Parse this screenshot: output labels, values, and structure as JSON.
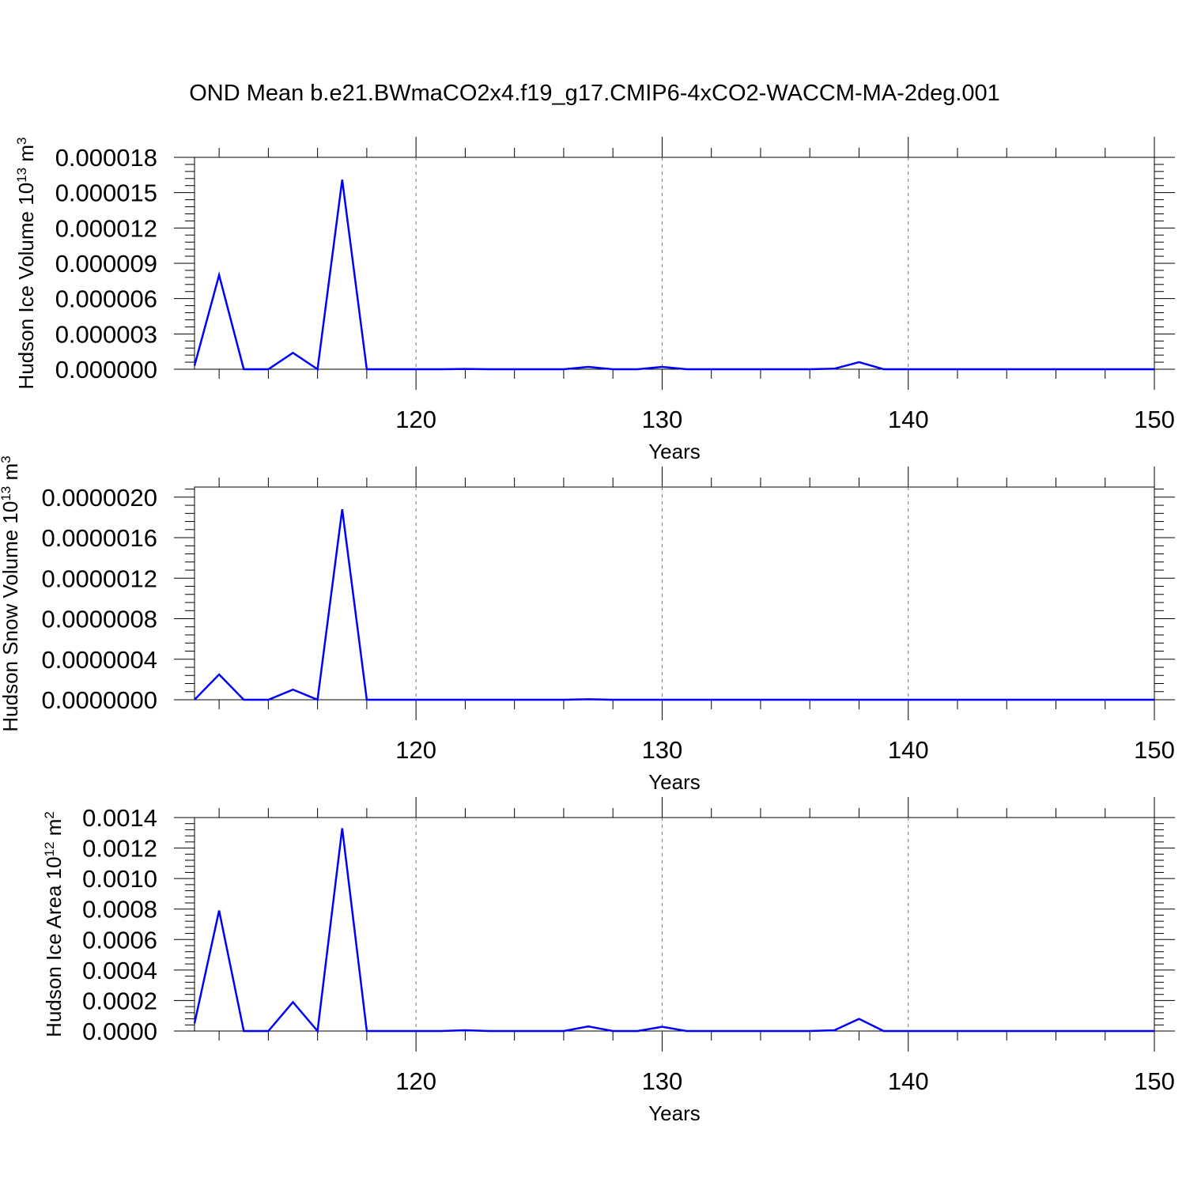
{
  "page_title": "OND Mean b.e21.BWmaCO2x4.f19_g17.CMIP6-4xCO2-WACCM-MA-2deg.001",
  "chart_data": [
    {
      "type": "line",
      "title": "OND Mean b.e21.BWmaCO2x4.f19_g17.CMIP6-4xCO2-WACCM-MA-2deg.001",
      "xlabel": "Years",
      "ylabel": {
        "base": "Hudson Ice Volume 10",
        "exp": "13",
        "unit": " m",
        "unit_exp": "3"
      },
      "xlim": [
        111,
        150
      ],
      "ylim": [
        0,
        1.8e-05
      ],
      "x_major_ticks": [
        120,
        130,
        140,
        150
      ],
      "x_tick_labels": [
        "120",
        "130",
        "140",
        "150"
      ],
      "y_major_ticks": [
        0,
        3e-06,
        6e-06,
        9e-06,
        1.2e-05,
        1.5e-05,
        1.8e-05
      ],
      "y_tick_labels": [
        "0.000000",
        "0.000003",
        "0.000006",
        "0.000009",
        "0.000012",
        "0.000015",
        "0.000018"
      ],
      "y_minor_step": 6e-07,
      "grid": "vertical dashed at major x ticks",
      "line_color": "#0000ff",
      "x": [
        111,
        112,
        113,
        114,
        115,
        116,
        117,
        118,
        119,
        120,
        121,
        122,
        123,
        124,
        125,
        126,
        127,
        128,
        129,
        130,
        131,
        132,
        133,
        134,
        135,
        136,
        137,
        138,
        139,
        140,
        141,
        142,
        143,
        144,
        145,
        146,
        147,
        148,
        149,
        150
      ],
      "values": [
        3e-07,
        8e-06,
        0,
        0,
        1.4e-06,
        0,
        1.61e-05,
        0,
        0,
        0,
        0,
        3e-08,
        0,
        0,
        0,
        0,
        2e-07,
        0,
        0,
        2e-07,
        0,
        0,
        0,
        0,
        0,
        0,
        5e-08,
        6e-07,
        0,
        0,
        0,
        0,
        0,
        0,
        0,
        0,
        0,
        0,
        0,
        0
      ]
    },
    {
      "type": "line",
      "title": "",
      "xlabel": "Years",
      "ylabel": {
        "base": "Hudson Snow Volume 10",
        "exp": "13",
        "unit": " m",
        "unit_exp": "3"
      },
      "xlim": [
        111,
        150
      ],
      "ylim": [
        0,
        2.1e-06
      ],
      "x_major_ticks": [
        120,
        130,
        140,
        150
      ],
      "x_tick_labels": [
        "120",
        "130",
        "140",
        "150"
      ],
      "y_major_ticks": [
        0,
        4e-07,
        8e-07,
        1.2e-06,
        1.6e-06,
        2e-06
      ],
      "y_tick_labels": [
        "0.0000000",
        "0.0000004",
        "0.0000008",
        "0.0000012",
        "0.0000016",
        "0.0000020"
      ],
      "y_minor_step": 8e-08,
      "grid": "vertical dashed at major x ticks",
      "line_color": "#0000ff",
      "x": [
        111,
        112,
        113,
        114,
        115,
        116,
        117,
        118,
        119,
        120,
        121,
        122,
        123,
        124,
        125,
        126,
        127,
        128,
        129,
        130,
        131,
        132,
        133,
        134,
        135,
        136,
        137,
        138,
        139,
        140,
        141,
        142,
        143,
        144,
        145,
        146,
        147,
        148,
        149,
        150
      ],
      "values": [
        0,
        2.5e-07,
        0,
        0,
        1e-07,
        0,
        1.88e-06,
        0,
        0,
        0,
        0,
        0,
        0,
        0,
        0,
        0,
        5e-09,
        0,
        0,
        0,
        0,
        0,
        0,
        0,
        0,
        0,
        0,
        0,
        0,
        0,
        0,
        0,
        0,
        0,
        0,
        0,
        0,
        0,
        0,
        0
      ]
    },
    {
      "type": "line",
      "title": "",
      "xlabel": "Years",
      "ylabel": {
        "base": "Hudson Ice Area 10",
        "exp": "12",
        "unit": " m",
        "unit_exp": "2"
      },
      "xlim": [
        111,
        150
      ],
      "ylim": [
        0,
        0.0014
      ],
      "x_major_ticks": [
        120,
        130,
        140,
        150
      ],
      "x_tick_labels": [
        "120",
        "130",
        "140",
        "150"
      ],
      "y_major_ticks": [
        0,
        0.0002,
        0.0004,
        0.0006,
        0.0008,
        0.001,
        0.0012,
        0.0014
      ],
      "y_tick_labels": [
        "0.0000",
        "0.0002",
        "0.0004",
        "0.0006",
        "0.0008",
        "0.0010",
        "0.0012",
        "0.0014"
      ],
      "y_minor_step": 4e-05,
      "grid": "vertical dashed at major x ticks",
      "line_color": "#0000ff",
      "x": [
        111,
        112,
        113,
        114,
        115,
        116,
        117,
        118,
        119,
        120,
        121,
        122,
        123,
        124,
        125,
        126,
        127,
        128,
        129,
        130,
        131,
        132,
        133,
        134,
        135,
        136,
        137,
        138,
        139,
        140,
        141,
        142,
        143,
        144,
        145,
        146,
        147,
        148,
        149,
        150
      ],
      "values": [
        5e-05,
        0.00079,
        0,
        0,
        0.00019,
        0,
        0.00133,
        0,
        0,
        0,
        0,
        5e-06,
        0,
        0,
        0,
        0,
        3e-05,
        0,
        0,
        2.8e-05,
        0,
        0,
        0,
        0,
        0,
        0,
        5e-06,
        8e-05,
        0,
        0,
        0,
        0,
        0,
        0,
        0,
        0,
        0,
        0,
        0,
        0
      ]
    }
  ]
}
